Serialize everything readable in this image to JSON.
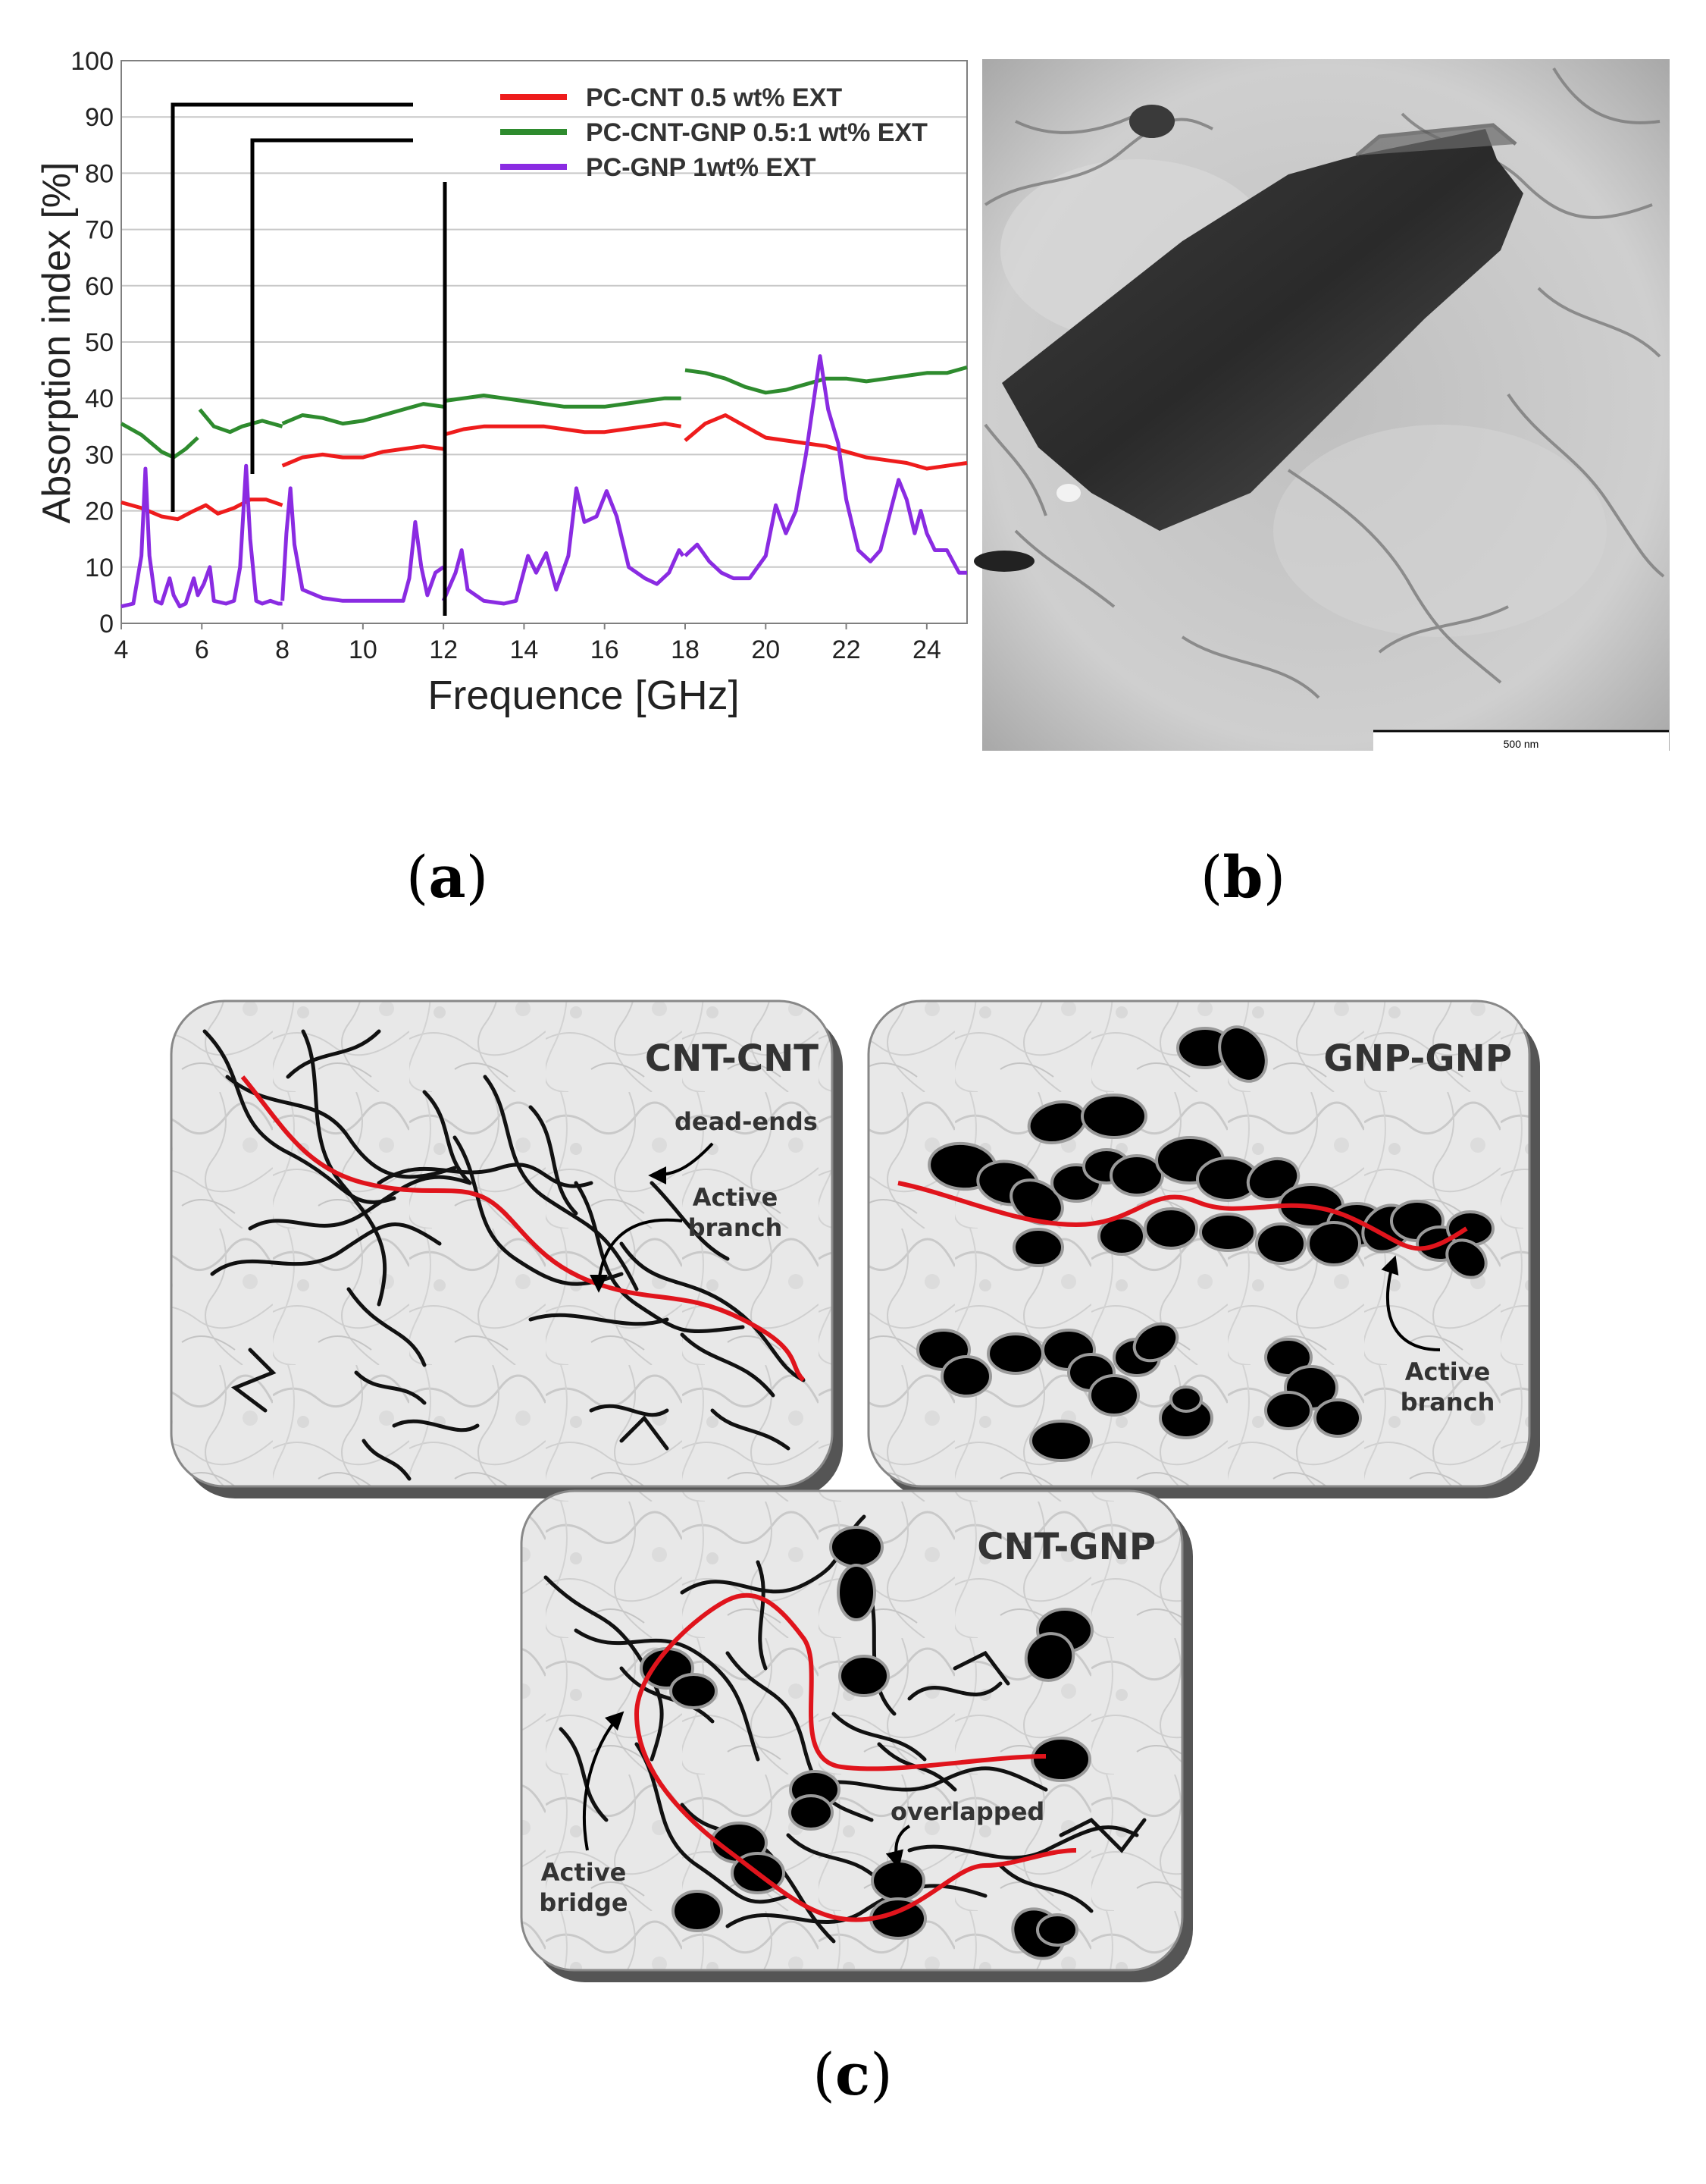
{
  "panel_labels": {
    "a": "a",
    "b": "b",
    "c": "c"
  },
  "chart_data": {
    "type": "line",
    "xlabel": "Frequence [GHz]",
    "ylabel": "Absorption index [%]",
    "xlim": [
      4,
      25
    ],
    "ylim": [
      0,
      100
    ],
    "xticks": [
      4,
      6,
      8,
      10,
      12,
      14,
      16,
      18,
      20,
      22,
      24
    ],
    "yticks": [
      0,
      10,
      20,
      30,
      40,
      50,
      60,
      70,
      80,
      90,
      100
    ],
    "grid": "horizontal",
    "legend_position": "top-right",
    "series": [
      {
        "name": "PC-CNT 0.5 wt% EXT",
        "color": "#ee1c1c",
        "segments": [
          [
            [
              4,
              21.5
            ],
            [
              4.5,
              20.5
            ],
            [
              5,
              19
            ],
            [
              5.4,
              18.5
            ],
            [
              5.8,
              20
            ],
            [
              6.1,
              21
            ],
            [
              6.4,
              19.5
            ],
            [
              6.8,
              20.5
            ],
            [
              7.2,
              22
            ],
            [
              7.6,
              22
            ],
            [
              8.0,
              21
            ]
          ],
          [
            [
              8.0,
              28
            ],
            [
              8.5,
              29.5
            ],
            [
              9,
              30
            ],
            [
              9.5,
              29.5
            ],
            [
              10,
              29.5
            ],
            [
              10.5,
              30.5
            ],
            [
              11,
              31
            ],
            [
              11.5,
              31.5
            ],
            [
              12,
              31
            ]
          ],
          [
            [
              12,
              33.5
            ],
            [
              12.5,
              34.5
            ],
            [
              13,
              35
            ],
            [
              13.5,
              35
            ],
            [
              14,
              35
            ],
            [
              14.5,
              35
            ],
            [
              15,
              34.5
            ],
            [
              15.5,
              34
            ],
            [
              16,
              34
            ],
            [
              16.5,
              34.5
            ],
            [
              17,
              35
            ],
            [
              17.5,
              35.5
            ],
            [
              17.9,
              35
            ]
          ],
          [
            [
              18,
              32.5
            ],
            [
              18.5,
              35.5
            ],
            [
              19,
              37
            ],
            [
              19.5,
              35
            ],
            [
              20,
              33
            ],
            [
              20.5,
              32.5
            ],
            [
              21,
              32
            ],
            [
              21.5,
              31.5
            ],
            [
              22,
              30.5
            ],
            [
              22.5,
              29.5
            ],
            [
              23,
              29
            ],
            [
              23.5,
              28.5
            ],
            [
              24,
              27.5
            ],
            [
              24.5,
              28
            ],
            [
              25,
              28.5
            ]
          ]
        ]
      },
      {
        "name": "PC-CNT-GNP 0.5:1 wt% EXT",
        "color": "#2e8b2e",
        "segments": [
          [
            [
              4,
              35.5
            ],
            [
              4.5,
              33.5
            ],
            [
              5,
              30.5
            ],
            [
              5.3,
              29.5
            ],
            [
              5.6,
              31
            ],
            [
              5.9,
              33
            ]
          ],
          [
            [
              5.95,
              38
            ],
            [
              6.3,
              35
            ],
            [
              6.7,
              34
            ],
            [
              7,
              35
            ],
            [
              7.5,
              36
            ],
            [
              8.0,
              35
            ]
          ],
          [
            [
              8.0,
              35.5
            ],
            [
              8.5,
              37
            ],
            [
              9,
              36.5
            ],
            [
              9.5,
              35.5
            ],
            [
              10,
              36
            ],
            [
              10.5,
              37
            ],
            [
              11,
              38
            ],
            [
              11.5,
              39
            ],
            [
              12,
              38.5
            ]
          ],
          [
            [
              12,
              39.5
            ],
            [
              12.5,
              40
            ],
            [
              13,
              40.5
            ],
            [
              13.5,
              40
            ],
            [
              14,
              39.5
            ],
            [
              14.5,
              39
            ],
            [
              15,
              38.5
            ],
            [
              15.5,
              38.5
            ],
            [
              16,
              38.5
            ],
            [
              16.5,
              39
            ],
            [
              17,
              39.5
            ],
            [
              17.5,
              40
            ],
            [
              17.9,
              40
            ]
          ],
          [
            [
              18,
              45
            ],
            [
              18.5,
              44.5
            ],
            [
              19,
              43.5
            ],
            [
              19.5,
              42
            ],
            [
              20,
              41
            ],
            [
              20.5,
              41.5
            ],
            [
              21,
              42.5
            ],
            [
              21.5,
              43.5
            ],
            [
              22,
              43.5
            ],
            [
              22.5,
              43
            ],
            [
              23,
              43.5
            ],
            [
              23.5,
              44
            ],
            [
              24,
              44.5
            ],
            [
              24.5,
              44.5
            ],
            [
              25,
              45.5
            ]
          ]
        ]
      },
      {
        "name": "PC-GNP 1wt% EXT",
        "color": "#8a2be2",
        "segments": [
          [
            [
              4,
              3
            ],
            [
              4.3,
              3.5
            ],
            [
              4.5,
              12
            ],
            [
              4.6,
              27.5
            ],
            [
              4.7,
              12
            ],
            [
              4.85,
              4
            ],
            [
              5.0,
              3.5
            ],
            [
              5.2,
              8
            ],
            [
              5.3,
              5
            ],
            [
              5.45,
              3
            ],
            [
              5.6,
              3.5
            ],
            [
              5.8,
              8
            ],
            [
              5.9,
              5
            ],
            [
              6.05,
              7
            ],
            [
              6.2,
              10
            ],
            [
              6.3,
              4
            ],
            [
              6.6,
              3.5
            ],
            [
              6.8,
              4
            ],
            [
              6.95,
              10
            ],
            [
              7.1,
              28
            ],
            [
              7.2,
              15
            ],
            [
              7.35,
              4
            ],
            [
              7.5,
              3.5
            ],
            [
              7.7,
              4
            ],
            [
              7.9,
              3.5
            ],
            [
              8.0,
              3.5
            ]
          ],
          [
            [
              8.0,
              4
            ],
            [
              8.1,
              16
            ],
            [
              8.2,
              24
            ],
            [
              8.3,
              14
            ],
            [
              8.5,
              6
            ],
            [
              9,
              4.5
            ],
            [
              9.5,
              4
            ],
            [
              10,
              4
            ],
            [
              10.5,
              4
            ],
            [
              11,
              4
            ],
            [
              11.15,
              8
            ],
            [
              11.3,
              18
            ],
            [
              11.45,
              10
            ],
            [
              11.6,
              5
            ],
            [
              11.8,
              9
            ],
            [
              12,
              10
            ]
          ],
          [
            [
              12,
              4
            ],
            [
              12.3,
              9
            ],
            [
              12.45,
              13
            ],
            [
              12.6,
              6
            ],
            [
              13,
              4
            ],
            [
              13.5,
              3.5
            ],
            [
              13.8,
              4
            ],
            [
              14.1,
              12
            ],
            [
              14.3,
              9
            ],
            [
              14.55,
              12.5
            ],
            [
              14.8,
              6
            ],
            [
              15.1,
              12
            ],
            [
              15.3,
              24
            ],
            [
              15.5,
              18
            ],
            [
              15.8,
              19
            ],
            [
              16.05,
              23.5
            ],
            [
              16.3,
              19
            ],
            [
              16.6,
              10
            ],
            [
              17,
              8
            ],
            [
              17.3,
              7
            ],
            [
              17.6,
              9
            ],
            [
              17.85,
              13
            ],
            [
              17.95,
              12
            ]
          ],
          [
            [
              18,
              12
            ],
            [
              18.3,
              14
            ],
            [
              18.6,
              11
            ],
            [
              18.9,
              9
            ],
            [
              19.2,
              8
            ],
            [
              19.6,
              8
            ],
            [
              20,
              12
            ],
            [
              20.25,
              21
            ],
            [
              20.5,
              16
            ],
            [
              20.75,
              20
            ],
            [
              21.0,
              30
            ],
            [
              21.2,
              40
            ],
            [
              21.35,
              47.5
            ],
            [
              21.55,
              38
            ],
            [
              21.8,
              32
            ],
            [
              22,
              22
            ],
            [
              22.3,
              13
            ],
            [
              22.6,
              11
            ],
            [
              22.85,
              13
            ],
            [
              23.1,
              20
            ],
            [
              23.3,
              25.5
            ],
            [
              23.5,
              22
            ],
            [
              23.7,
              16
            ],
            [
              23.85,
              20
            ],
            [
              24,
              16
            ],
            [
              24.2,
              13
            ],
            [
              24.5,
              13
            ],
            [
              24.8,
              9
            ],
            [
              25,
              9
            ]
          ]
        ]
      }
    ]
  },
  "tem_image": {
    "scale_label": "500 nm"
  },
  "schematic": {
    "panels": [
      {
        "title": "CNT-CNT",
        "annotations": [
          "dead-ends",
          "Active\nbranch"
        ]
      },
      {
        "title": "GNP-GNP",
        "annotations": [
          "Active\nbranch"
        ]
      },
      {
        "title": "CNT-GNP",
        "annotations": [
          "overlapped",
          "Active\nbridge"
        ]
      }
    ],
    "colors": {
      "filler": "#000000",
      "path": "#e0141c",
      "matrix": "#e6e6e6"
    }
  }
}
